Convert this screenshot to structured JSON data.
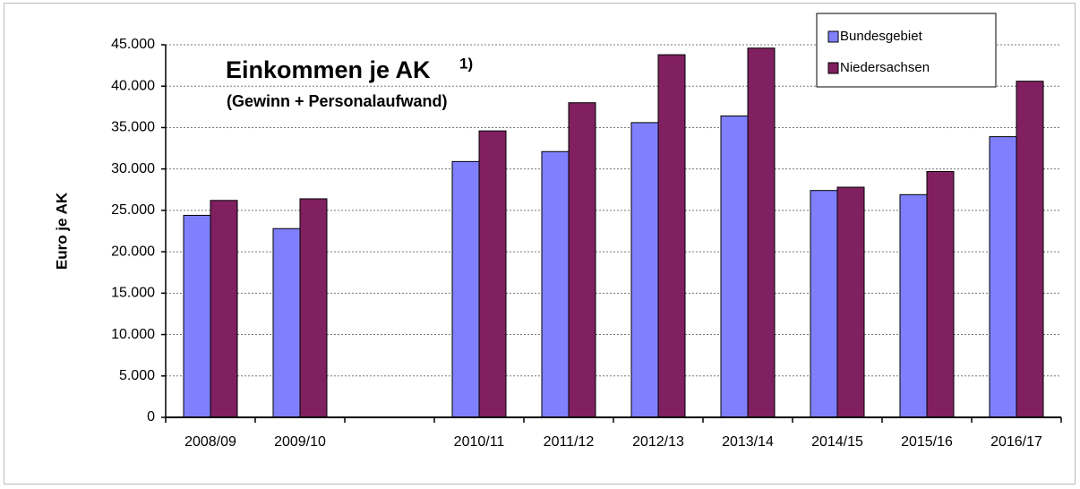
{
  "chart_data": {
    "type": "bar",
    "title": "Einkommen je AK",
    "title_note": "1)",
    "subtitle": "(Gewinn + Personalaufwand)",
    "y_label": "Euro je AK",
    "categories": [
      "2008/09",
      "2009/10",
      null,
      "2010/11",
      "2011/12",
      "2012/13",
      "2013/14",
      "2014/15",
      "2015/16",
      "2016/17"
    ],
    "series": [
      {
        "name": "Bundesgebiet",
        "color": "#8080ff",
        "values": [
          24400,
          22800,
          null,
          30900,
          32100,
          35600,
          36400,
          27400,
          26900,
          33900
        ]
      },
      {
        "name": "Niedersachsen",
        "color": "#802060",
        "values": [
          26200,
          26400,
          null,
          34600,
          38000,
          43800,
          44600,
          27800,
          29700,
          40600
        ]
      }
    ],
    "ylim": [
      0,
      45000
    ],
    "yticks": [
      0,
      {
        "value": 5000,
        "label": "5.000"
      },
      {
        "value": 10000,
        "label": "10.000"
      },
      {
        "value": 15000,
        "label": "15.000"
      },
      {
        "value": 20000,
        "label": "20.000"
      },
      {
        "value": 25000,
        "label": "25.000"
      },
      {
        "value": 30000,
        "label": "30.000"
      },
      {
        "value": 35000,
        "label": "35.000"
      },
      {
        "value": 40000,
        "label": "40.000"
      },
      {
        "value": 45000,
        "label": "45.000"
      }
    ],
    "grid": true,
    "legend": "top-right"
  }
}
